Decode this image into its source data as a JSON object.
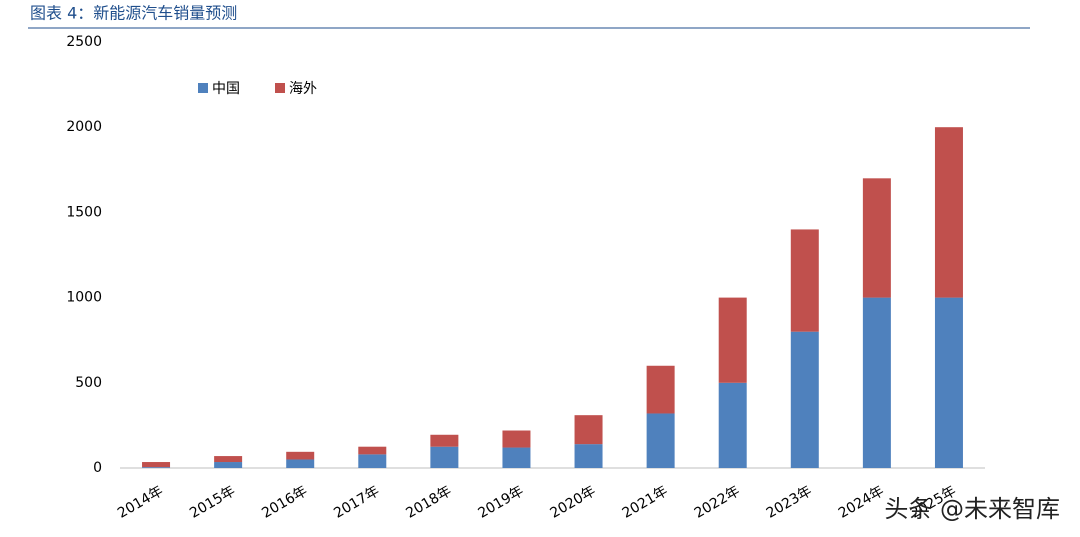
{
  "chart_data": {
    "type": "stacked_bar",
    "title": "图表 4：新能源汽车销量预测",
    "categories": [
      "2014年",
      "2015年",
      "2016年",
      "2017年",
      "2018年",
      "2019年",
      "2020年",
      "2021年",
      "2022年",
      "2023年",
      "2024年",
      "2025年"
    ],
    "series": [
      {
        "name": "中国",
        "color": "#4f81bd",
        "values": [
          5,
          35,
          50,
          80,
          125,
          120,
          140,
          320,
          500,
          800,
          1000,
          1000
        ]
      },
      {
        "name": "海外",
        "color": "#c0504d",
        "values": [
          30,
          35,
          45,
          45,
          70,
          100,
          170,
          280,
          500,
          600,
          700,
          1000
        ]
      }
    ],
    "ylim": [
      0,
      2500
    ],
    "yticks": [
      0,
      500,
      1000,
      1500,
      2000,
      2500
    ],
    "grid": false,
    "legend": "top-left",
    "watermark": "头条 @未来智库"
  }
}
